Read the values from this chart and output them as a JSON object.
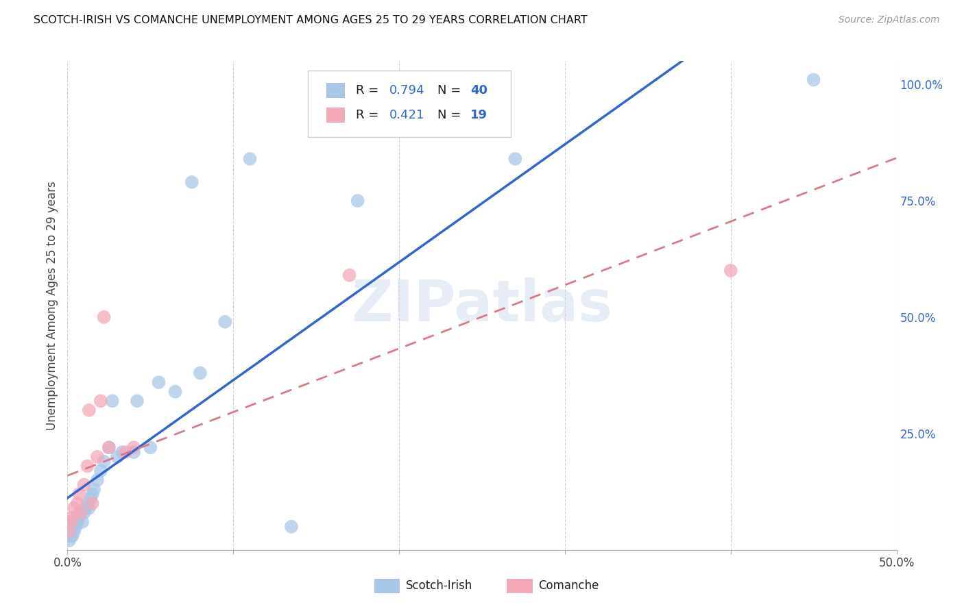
{
  "title": "SCOTCH-IRISH VS COMANCHE UNEMPLOYMENT AMONG AGES 25 TO 29 YEARS CORRELATION CHART",
  "source": "Source: ZipAtlas.com",
  "ylabel": "Unemployment Among Ages 25 to 29 years",
  "xlim": [
    0,
    0.5
  ],
  "ylim": [
    0,
    1.05
  ],
  "x_tick_positions": [
    0.0,
    0.1,
    0.2,
    0.3,
    0.4,
    0.5
  ],
  "x_tick_labels": [
    "0.0%",
    "",
    "",
    "",
    "",
    "50.0%"
  ],
  "y_tick_positions": [
    0.0,
    0.25,
    0.5,
    0.75,
    1.0
  ],
  "y_tick_labels_right": [
    "",
    "25.0%",
    "50.0%",
    "75.0%",
    "100.0%"
  ],
  "scotch_irish_R": "0.794",
  "scotch_irish_N": "40",
  "comanche_R": "0.421",
  "comanche_N": "19",
  "scotch_irish_color": "#a8c8e8",
  "comanche_color": "#f4a8b8",
  "scotch_irish_line_color": "#3366cc",
  "comanche_line_color": "#dd7788",
  "legend_label_1": "Scotch-Irish",
  "legend_label_2": "Comanche",
  "watermark": "ZIPatlas",
  "background_color": "#ffffff",
  "grid_color": "#cccccc",
  "scotch_irish_x": [
    0.001,
    0.002,
    0.002,
    0.003,
    0.003,
    0.004,
    0.004,
    0.005,
    0.005,
    0.006,
    0.007,
    0.008,
    0.009,
    0.01,
    0.011,
    0.012,
    0.013,
    0.014,
    0.015,
    0.016,
    0.018,
    0.02,
    0.022,
    0.025,
    0.027,
    0.03,
    0.033,
    0.04,
    0.042,
    0.05,
    0.055,
    0.065,
    0.075,
    0.08,
    0.095,
    0.11,
    0.135,
    0.175,
    0.27,
    0.45
  ],
  "scotch_irish_y": [
    0.02,
    0.03,
    0.04,
    0.03,
    0.05,
    0.04,
    0.06,
    0.05,
    0.07,
    0.06,
    0.07,
    0.08,
    0.06,
    0.08,
    0.09,
    0.1,
    0.09,
    0.11,
    0.12,
    0.13,
    0.15,
    0.17,
    0.19,
    0.22,
    0.32,
    0.2,
    0.21,
    0.21,
    0.32,
    0.22,
    0.36,
    0.34,
    0.79,
    0.38,
    0.49,
    0.84,
    0.05,
    0.75,
    0.84,
    1.01
  ],
  "comanche_x": [
    0.001,
    0.002,
    0.003,
    0.004,
    0.006,
    0.007,
    0.008,
    0.01,
    0.012,
    0.013,
    0.015,
    0.018,
    0.02,
    0.022,
    0.025,
    0.035,
    0.04,
    0.17,
    0.4
  ],
  "comanche_y": [
    0.04,
    0.06,
    0.07,
    0.09,
    0.1,
    0.12,
    0.08,
    0.14,
    0.18,
    0.3,
    0.1,
    0.2,
    0.32,
    0.5,
    0.22,
    0.21,
    0.22,
    0.59,
    0.6
  ]
}
